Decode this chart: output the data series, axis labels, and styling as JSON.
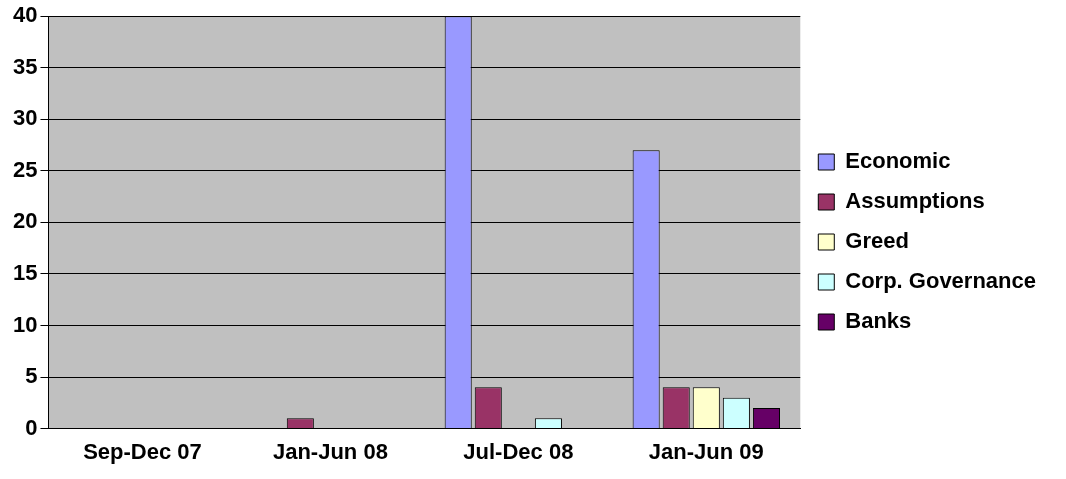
{
  "chart_data": {
    "type": "bar",
    "categories": [
      "Sep-Dec 07",
      "Jan-Jun 08",
      "Jul-Dec 08",
      "Jan-Jun 09"
    ],
    "series": [
      {
        "name": "Economic",
        "color": "#9999ff",
        "values": [
          0,
          0,
          40,
          27
        ]
      },
      {
        "name": "Assumptions",
        "color": "#993366",
        "values": [
          0,
          1,
          4,
          4
        ]
      },
      {
        "name": "Greed",
        "color": "#ffffcc",
        "values": [
          0,
          0,
          0,
          4
        ]
      },
      {
        "name": "Corp. Governance",
        "color": "#ccffff",
        "values": [
          0,
          0,
          1,
          3
        ]
      },
      {
        "name": "Banks",
        "color": "#660066",
        "values": [
          0,
          0,
          0,
          2
        ]
      }
    ],
    "ylim": [
      0,
      40
    ],
    "yticks": [
      0,
      5,
      10,
      15,
      20,
      25,
      30,
      35,
      40
    ],
    "grid": "y",
    "legend": "right"
  }
}
